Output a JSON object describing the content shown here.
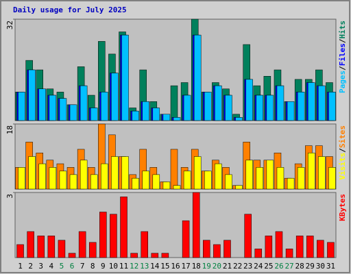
{
  "chart_data": [
    {
      "type": "bar",
      "title": "Daily usage for July 2025",
      "ylim": [
        0,
        32
      ],
      "yticks": [
        32
      ],
      "separator": "/",
      "series": [
        {
          "name": "Hits",
          "color": "#00805c",
          "values": [
            9,
            19,
            16,
            10,
            9,
            5,
            17,
            8,
            25,
            21,
            28,
            4,
            16,
            6,
            2,
            11,
            12,
            32,
            9,
            12,
            10,
            2,
            24,
            11,
            14,
            16,
            6,
            13,
            13,
            16,
            12
          ]
        },
        {
          "name": "Files",
          "color": "#0000ff",
          "values": [
            9,
            16,
            10,
            8,
            7,
            5,
            11,
            4,
            9,
            15,
            27,
            3,
            6,
            4,
            2,
            1,
            8,
            27,
            9,
            11,
            8,
            1,
            13,
            8,
            8,
            11,
            6,
            9,
            12,
            11,
            9
          ]
        },
        {
          "name": "Pages",
          "color": "#00c0ff",
          "values": [
            9,
            16,
            10,
            8,
            7,
            5,
            11,
            4,
            9,
            15,
            27,
            3,
            6,
            4,
            2,
            1,
            8,
            27,
            9,
            11,
            8,
            1,
            13,
            8,
            8,
            11,
            6,
            9,
            12,
            11,
            9
          ]
        }
      ]
    },
    {
      "type": "bar",
      "ylim": [
        0,
        18
      ],
      "yticks": [
        18
      ],
      "separator": "/",
      "series": [
        {
          "name": "Sites",
          "color": "#ff8000",
          "values": [
            6,
            13,
            10,
            8,
            7,
            6,
            11,
            6,
            18,
            15,
            9,
            4,
            11,
            6,
            2,
            11,
            6,
            11,
            5,
            8,
            6,
            1,
            13,
            8,
            8,
            10,
            3,
            7,
            12,
            12,
            9
          ]
        },
        {
          "name": "Visits",
          "color": "#ffff00",
          "values": [
            6,
            9,
            7,
            6,
            5,
            4,
            8,
            4,
            7,
            9,
            9,
            3,
            5,
            4,
            2,
            1,
            5,
            9,
            5,
            7,
            4,
            1,
            8,
            6,
            8,
            6,
            3,
            6,
            10,
            9,
            6
          ]
        }
      ]
    },
    {
      "type": "bar",
      "ylim": [
        0,
        3
      ],
      "yticks": [
        3
      ],
      "categories": [
        "1",
        "2",
        "3",
        "4",
        "5",
        "6",
        "7",
        "8",
        "9",
        "10",
        "11",
        "12",
        "13",
        "14",
        "15",
        "16",
        "17",
        "18",
        "19",
        "20",
        "21",
        "22",
        "23",
        "24",
        "25",
        "26",
        "27",
        "28",
        "29",
        "30",
        "31"
      ],
      "category_colors": [
        "#000000",
        "#000000",
        "#000000",
        "#000000",
        "#008040",
        "#008040",
        "#000000",
        "#000000",
        "#000000",
        "#000000",
        "#000000",
        "#008040",
        "#008040",
        "#000000",
        "#000000",
        "#000000",
        "#000000",
        "#000000",
        "#008040",
        "#008040",
        "#000000",
        "#000000",
        "#000000",
        "#000000",
        "#000000",
        "#008040",
        "#008040",
        "#000000",
        "#000000",
        "#000000",
        "#000000"
      ],
      "series": [
        {
          "name": "KBytes",
          "color": "#ff0000",
          "values": [
            0.6,
            1.2,
            1.0,
            1.0,
            0.8,
            0.2,
            1.2,
            0.7,
            2.1,
            2.0,
            2.8,
            0.2,
            1.2,
            0.2,
            0.2,
            0,
            1.7,
            3.0,
            0.8,
            0.6,
            0.8,
            0,
            2.0,
            0.4,
            1.0,
            1.2,
            0.4,
            1.0,
            1.0,
            0.8,
            0.7
          ]
        }
      ]
    }
  ]
}
